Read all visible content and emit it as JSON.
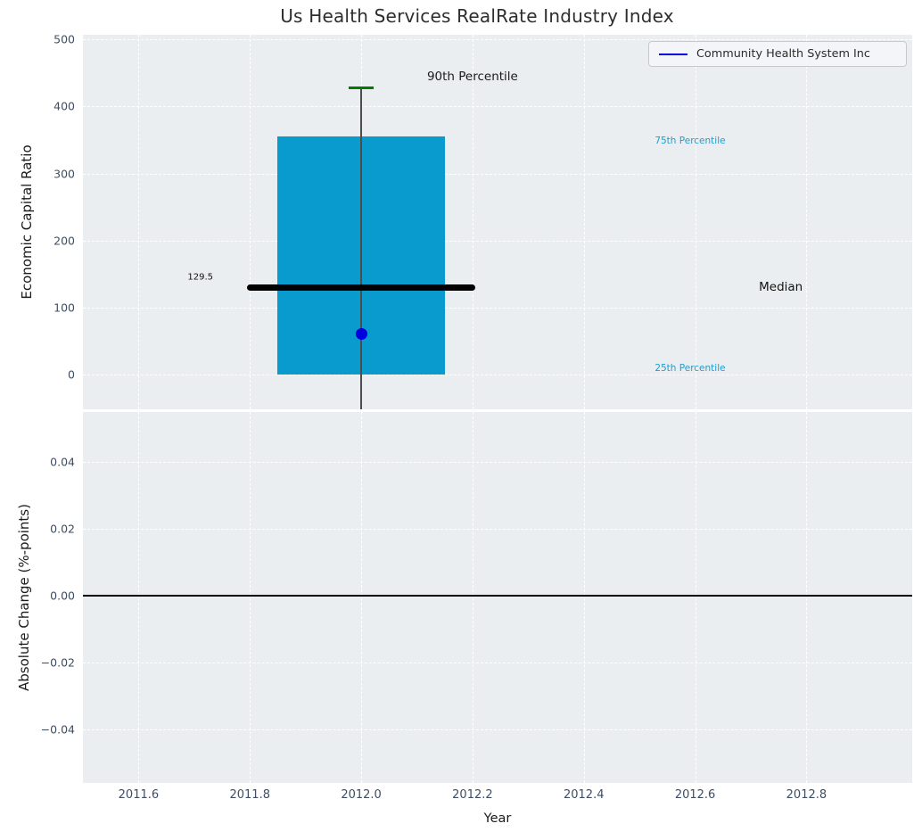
{
  "title": "Us Health Services RealRate Industry Index",
  "legend": {
    "label": "Community Health System Inc",
    "line_color": "#0000e0"
  },
  "colors": {
    "plot_bg": "#ebeef0",
    "grid": "#ffffff",
    "bar": "#0a9bce",
    "percentile_label": "#1f9ccd",
    "tick_text": "#3e4e63",
    "axis_label_text": "#1b1b1b",
    "median_line": "#000000",
    "marker": "#0000e0",
    "whisker": "#4d4d4d",
    "cap_90th": "#007d00",
    "zero_line": "#000000"
  },
  "chart_data": [
    {
      "type": "bar",
      "subtype": "percentile-box",
      "ylabel": "Economic Capital Ratio",
      "xlim": [
        2011.5,
        2012.99
      ],
      "ylim": [
        -52,
        507
      ],
      "yticks": [
        0,
        100,
        200,
        300,
        400,
        500
      ],
      "ytick_labels": [
        "0",
        "100",
        "200",
        "300",
        "400",
        "500"
      ],
      "grid": true,
      "legend_position": "top-right",
      "box": {
        "x": 2012.0,
        "bar_width": 0.3,
        "p25": 0,
        "p75": 355,
        "median": 129.5,
        "median_label": "129.5",
        "median_span": 0.41,
        "p90": 428,
        "cap_width": 0.032,
        "whisker_low_clipped_at": -52
      },
      "point": {
        "series": "Community Health System Inc",
        "x": 2012.0,
        "y": 60
      },
      "annotations": [
        {
          "text": "90th Percentile",
          "x": 2012.2,
          "y": 444,
          "color": "#1a1a1a",
          "size": 13.5
        },
        {
          "text": "129.5",
          "x": 2011.711,
          "y": 145,
          "color": "#111111",
          "size": 10
        },
        {
          "text": "Median",
          "x": 2012.754,
          "y": 130,
          "color": "#111111",
          "size": 13.5
        },
        {
          "text": "75th Percentile",
          "x": 2012.591,
          "y": 348,
          "color": "#1f9ccd",
          "size": 10.5
        },
        {
          "text": "25th Percentile",
          "x": 2012.591,
          "y": 9,
          "color": "#1f9ccd",
          "size": 10.5
        }
      ]
    },
    {
      "type": "line",
      "ylabel": "Absolute Change (%-points)",
      "xlabel": "Year",
      "xlim": [
        2011.5,
        2012.99
      ],
      "ylim": [
        -0.056,
        0.055
      ],
      "yticks": [
        -0.04,
        -0.02,
        0,
        0.02,
        0.04
      ],
      "ytick_labels": [
        "−0.04",
        "−0.02",
        "0.00",
        "0.02",
        "0.04"
      ],
      "xticks": [
        2011.6,
        2011.8,
        2012.0,
        2012.2,
        2012.4,
        2012.6,
        2012.8
      ],
      "xtick_labels": [
        "2011.6",
        "2011.8",
        "2012.0",
        "2012.2",
        "2012.4",
        "2012.6",
        "2012.8"
      ],
      "zero_line": 0.0,
      "grid": true
    }
  ]
}
